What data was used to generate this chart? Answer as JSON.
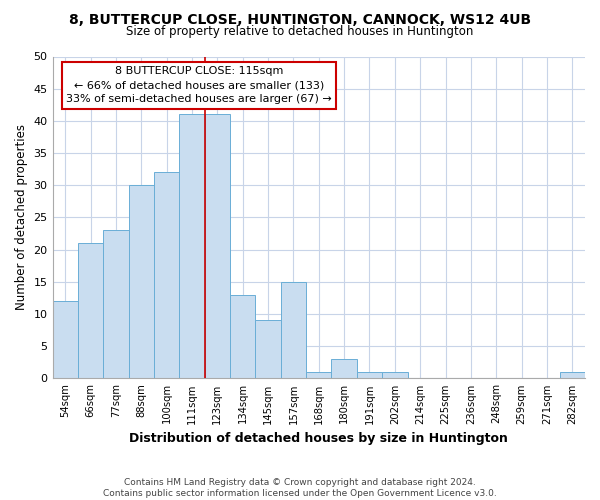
{
  "title": "8, BUTTERCUP CLOSE, HUNTINGTON, CANNOCK, WS12 4UB",
  "subtitle": "Size of property relative to detached houses in Huntington",
  "xlabel": "Distribution of detached houses by size in Huntington",
  "ylabel": "Number of detached properties",
  "bin_labels": [
    "54sqm",
    "66sqm",
    "77sqm",
    "88sqm",
    "100sqm",
    "111sqm",
    "123sqm",
    "134sqm",
    "145sqm",
    "157sqm",
    "168sqm",
    "180sqm",
    "191sqm",
    "202sqm",
    "214sqm",
    "225sqm",
    "236sqm",
    "248sqm",
    "259sqm",
    "271sqm",
    "282sqm"
  ],
  "bar_values": [
    12,
    21,
    23,
    30,
    32,
    41,
    41,
    13,
    9,
    15,
    1,
    3,
    1,
    1,
    0,
    0,
    0,
    0,
    0,
    0,
    1
  ],
  "bar_color": "#c9ddf0",
  "bar_edge_color": "#6aaed6",
  "property_line_label": "8 BUTTERCUP CLOSE: 115sqm",
  "annotation_line1": "← 66% of detached houses are smaller (133)",
  "annotation_line2": "33% of semi-detached houses are larger (67) →",
  "property_line_color": "#cc0000",
  "ylim": [
    0,
    50
  ],
  "yticks": [
    0,
    5,
    10,
    15,
    20,
    25,
    30,
    35,
    40,
    45,
    50
  ],
  "footnote1": "Contains HM Land Registry data © Crown copyright and database right 2024.",
  "footnote2": "Contains public sector information licensed under the Open Government Licence v3.0.",
  "annotation_box_color": "#ffffff",
  "annotation_box_edge": "#cc0000",
  "background_color": "#ffffff",
  "grid_color": "#c8d4e8"
}
